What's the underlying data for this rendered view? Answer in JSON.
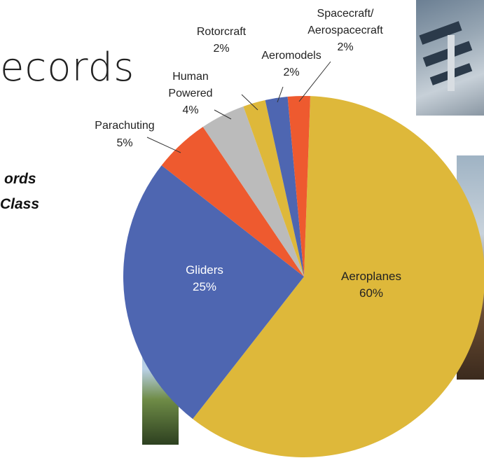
{
  "header": {
    "title_fragment": "ecords",
    "subtitle_line1": "ords",
    "subtitle_line2": "Class"
  },
  "colors": {
    "aeroplanes": "#DEB83A",
    "gliders": "#4E66B1",
    "parachuting": "#EE5A2F",
    "human_powered": "#BBBBBB",
    "rotorcraft": "#DEB83A",
    "aeromodels": "#4E66B1",
    "spacecraft": "#EE5A2F"
  },
  "chart_data": {
    "type": "pie",
    "title": "",
    "slices": [
      {
        "label": "Aeroplanes",
        "value_label": "60%",
        "value": 60,
        "color": "#DEB83A"
      },
      {
        "label": "Gliders",
        "value_label": "25%",
        "value": 25,
        "color": "#4E66B1"
      },
      {
        "label": "Parachuting",
        "value_label": "5%",
        "value": 5,
        "color": "#EE5A2F"
      },
      {
        "label": "Human Powered",
        "value_label": "4%",
        "value": 4,
        "color": "#BBBBBB"
      },
      {
        "label": "Rotorcraft",
        "value_label": "2%",
        "value": 2,
        "color": "#DEB83A"
      },
      {
        "label": "Aeromodels",
        "value_label": "2%",
        "value": 2,
        "color": "#4E66B1"
      },
      {
        "label": "Spacecraft/ Aerospacecraft",
        "value_label": "2%",
        "value": 2,
        "color": "#EE5A2F"
      }
    ]
  }
}
